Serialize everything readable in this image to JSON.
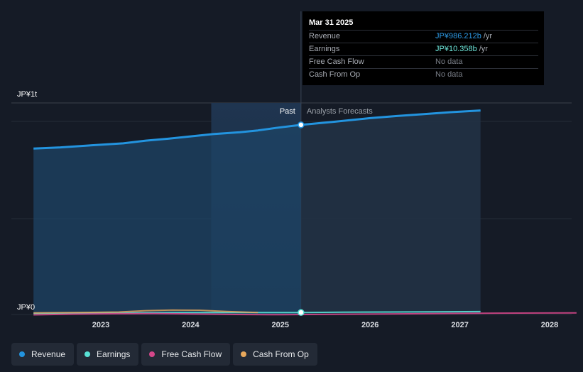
{
  "colors": {
    "revenue": "#2394df",
    "earnings": "#58e1d5",
    "free_cash_flow": "#d4478a",
    "cash_from_op": "#e8a85c",
    "background": "#151b26"
  },
  "tooltip": {
    "date": "Mar 31 2025",
    "rows": [
      {
        "label": "Revenue",
        "value": "JP¥986.212b",
        "unit": "/yr",
        "color": "#2d9ae6"
      },
      {
        "label": "Earnings",
        "value": "JP¥10.358b",
        "unit": "/yr",
        "color": "#6ee8dc"
      },
      {
        "label": "Free Cash Flow",
        "value": "No data",
        "unit": "",
        "color": "#7a7f88"
      },
      {
        "label": "Cash From Op",
        "value": "No data",
        "unit": "",
        "color": "#7a7f88"
      }
    ]
  },
  "legend": [
    {
      "label": "Revenue",
      "color": "#2394df"
    },
    {
      "label": "Earnings",
      "color": "#58e1d5"
    },
    {
      "label": "Free Cash Flow",
      "color": "#d4478a"
    },
    {
      "label": "Cash From Op",
      "color": "#e8a85c"
    }
  ],
  "chart_data": {
    "type": "area",
    "y_top_label": "JP¥1t",
    "y_bottom_label": "JP¥0",
    "past_label": "Past",
    "forecast_label": "Analysts Forecasts",
    "x_ticks": [
      "2023",
      "2024",
      "2025",
      "2026",
      "2027",
      "2028"
    ],
    "x_range": [
      2022.25,
      2028.3
    ],
    "ylim": [
      0,
      1100
    ],
    "y_unit": "JP¥ billions",
    "divider_x": 2025.23,
    "past_start_x": 2024.23,
    "series": [
      {
        "name": "Revenue",
        "key": "revenue",
        "points": [
          [
            2022.25,
            863
          ],
          [
            2022.55,
            869
          ],
          [
            2022.9,
            880
          ],
          [
            2023.25,
            890
          ],
          [
            2023.5,
            904
          ],
          [
            2023.75,
            914
          ],
          [
            2024.0,
            926
          ],
          [
            2024.25,
            938
          ],
          [
            2024.55,
            948
          ],
          [
            2024.75,
            957
          ],
          [
            2024.95,
            970
          ],
          [
            2025.23,
            986
          ],
          [
            2025.6,
            1002
          ],
          [
            2026.0,
            1021
          ],
          [
            2026.3,
            1032
          ],
          [
            2026.6,
            1042
          ],
          [
            2026.9,
            1052
          ],
          [
            2027.23,
            1061
          ]
        ],
        "forecast_from": 2025.23
      },
      {
        "name": "Earnings",
        "key": "earnings",
        "points": [
          [
            2022.25,
            6
          ],
          [
            2022.6,
            7
          ],
          [
            2023.0,
            8
          ],
          [
            2023.4,
            9
          ],
          [
            2023.8,
            10
          ],
          [
            2024.2,
            10
          ],
          [
            2024.6,
            10
          ],
          [
            2025.23,
            10.4
          ],
          [
            2025.7,
            12
          ],
          [
            2026.2,
            13
          ],
          [
            2026.7,
            14
          ],
          [
            2027.23,
            15
          ]
        ],
        "forecast_from": 2025.23
      },
      {
        "name": "Free Cash Flow",
        "key": "free_cash_flow",
        "points": [
          [
            2022.25,
            -2
          ],
          [
            2022.7,
            2
          ],
          [
            2023.2,
            4
          ],
          [
            2023.6,
            5
          ],
          [
            2024.0,
            3
          ],
          [
            2024.5,
            0
          ],
          [
            2025.0,
            -1
          ],
          [
            2025.6,
            1
          ],
          [
            2026.2,
            3
          ],
          [
            2026.8,
            5
          ],
          [
            2027.4,
            7
          ],
          [
            2028.3,
            8
          ]
        ]
      },
      {
        "name": "Cash From Op",
        "key": "cash_from_op",
        "points": [
          [
            2022.25,
            8
          ],
          [
            2022.7,
            10
          ],
          [
            2023.2,
            13
          ],
          [
            2023.5,
            20
          ],
          [
            2023.8,
            23
          ],
          [
            2024.1,
            22
          ],
          [
            2024.4,
            16
          ],
          [
            2024.75,
            10
          ]
        ]
      }
    ],
    "highlight_points": [
      {
        "series": "revenue",
        "x": 2025.23,
        "y": 986
      },
      {
        "series": "earnings",
        "x": 2025.23,
        "y": 10.4
      }
    ]
  }
}
